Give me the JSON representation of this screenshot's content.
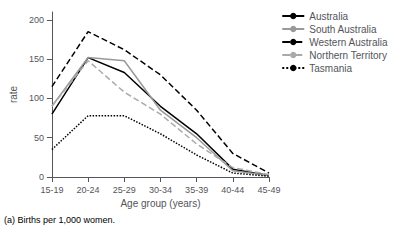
{
  "chart_data": {
    "type": "line",
    "xlabel": "Age group (years)",
    "ylabel": "rate",
    "footnote": "(a) Births per 1,000 women.",
    "categories": [
      "15-19",
      "20-24",
      "25-29",
      "30-34",
      "35-39",
      "40-44",
      "45-49"
    ],
    "series": [
      {
        "name": "Australia",
        "color": "#000000",
        "line_style": "solid",
        "values": [
          80,
          152,
          133,
          90,
          55,
          10,
          2
        ]
      },
      {
        "name": "South Australia",
        "color": "#999999",
        "line_style": "solid",
        "values": [
          90,
          152,
          148,
          85,
          50,
          8,
          2
        ]
      },
      {
        "name": "Western Australia",
        "color": "#000000",
        "line_style": "dashed",
        "values": [
          115,
          185,
          162,
          130,
          85,
          30,
          5
        ]
      },
      {
        "name": "Northern Territory",
        "color": "#aaaaaa",
        "line_style": "dashed",
        "values": [
          90,
          148,
          108,
          80,
          42,
          12,
          3
        ]
      },
      {
        "name": "Tasmania",
        "color": "#000000",
        "line_style": "dotted",
        "values": [
          35,
          78,
          78,
          55,
          28,
          5,
          1
        ]
      }
    ],
    "ylim": [
      0,
      210
    ],
    "yticks": [
      0,
      50,
      100,
      150,
      200
    ],
    "grid": false,
    "legend": "upper right"
  }
}
